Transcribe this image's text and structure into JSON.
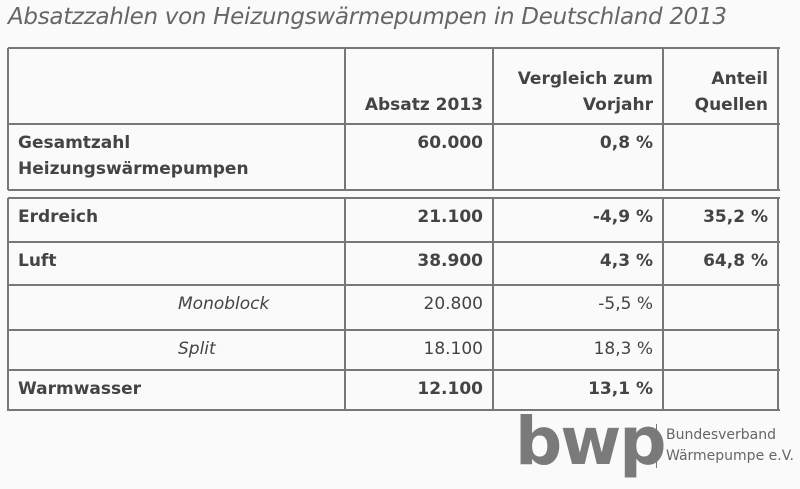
{
  "title": "Absatzzahlen von Heizungswärmepumpen in Deutschland 2013",
  "table": {
    "header": [
      "Absatz 2013",
      "Vergleich zum\nVorjahr",
      "Anteil\nQuellen"
    ],
    "rows": [
      [
        "Gesamtzahl\nHeizungswärmepumpen",
        "60.000",
        "0,8 %"
      ],
      [
        "Erdreich",
        "21.100",
        "-4,9 %",
        "35,2 %"
      ],
      [
        "Luft",
        "38.900",
        "4,3 %",
        "64,8 %"
      ],
      [
        "Monoblock",
        "20.800",
        "-5,5 %"
      ],
      [
        "Split",
        "18.100",
        "18,3 %"
      ],
      [
        "Warmwasser",
        "12.100",
        "13,1 %"
      ]
    ]
  },
  "logo": {
    "mark": "bwp",
    "line1": "Bundesverband",
    "line2": "Wärmepumpe e.V."
  }
}
